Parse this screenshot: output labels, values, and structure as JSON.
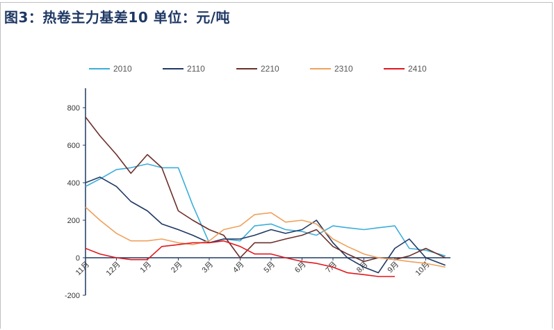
{
  "title": "图3：热卷主力基差10   单位：元/吨",
  "chart_data": {
    "type": "line",
    "title": "图3：热卷主力基差10   单位：元/吨",
    "xlabel": "",
    "ylabel": "",
    "x_ticks": [
      "11月",
      "12月",
      "1月",
      "2月",
      "3月",
      "4月",
      "5月",
      "6月",
      "7月",
      "8月",
      "9月",
      "10月"
    ],
    "y_ticks": [
      -200,
      0,
      200,
      400,
      600,
      800
    ],
    "ylim": [
      -200,
      900
    ],
    "grid": false,
    "legend": "top",
    "x": [
      "11/01",
      "11/15",
      "12/01",
      "12/15",
      "01/01",
      "01/15",
      "02/01",
      "02/15",
      "03/01",
      "03/15",
      "04/01",
      "04/15",
      "05/01",
      "05/15",
      "06/01",
      "06/15",
      "07/01",
      "07/15",
      "08/01",
      "08/15",
      "09/01",
      "09/15",
      "10/01",
      "10/20"
    ],
    "series": [
      {
        "name": "2010",
        "color": "#3aaedb",
        "values": [
          380,
          420,
          470,
          480,
          500,
          480,
          480,
          280,
          80,
          100,
          90,
          170,
          180,
          150,
          140,
          120,
          170,
          160,
          150,
          160,
          170,
          50,
          40,
          10
        ]
      },
      {
        "name": "2110",
        "color": "#1f3864",
        "values": [
          400,
          430,
          380,
          300,
          250,
          180,
          150,
          120,
          80,
          100,
          100,
          120,
          150,
          130,
          150,
          200,
          80,
          0,
          -50,
          -80,
          50,
          100,
          0,
          -40
        ]
      },
      {
        "name": "2210",
        "color": "#6b2e2a",
        "values": [
          750,
          650,
          550,
          450,
          550,
          480,
          250,
          200,
          150,
          120,
          0,
          80,
          80,
          100,
          120,
          150,
          60,
          20,
          -20,
          0,
          -10,
          10,
          50,
          0
        ]
      },
      {
        "name": "2310",
        "color": "#f0a05a",
        "values": [
          270,
          200,
          130,
          90,
          90,
          100,
          80,
          70,
          90,
          150,
          170,
          230,
          240,
          190,
          200,
          180,
          100,
          60,
          20,
          0,
          -10,
          -20,
          -30,
          -50
        ]
      },
      {
        "name": "2410",
        "color": "#e0161b",
        "values": [
          50,
          20,
          0,
          -10,
          -10,
          60,
          70,
          80,
          80,
          90,
          60,
          20,
          20,
          0,
          -20,
          -30,
          -50,
          -80,
          -90,
          -100,
          -100,
          null,
          null,
          null
        ]
      }
    ]
  }
}
